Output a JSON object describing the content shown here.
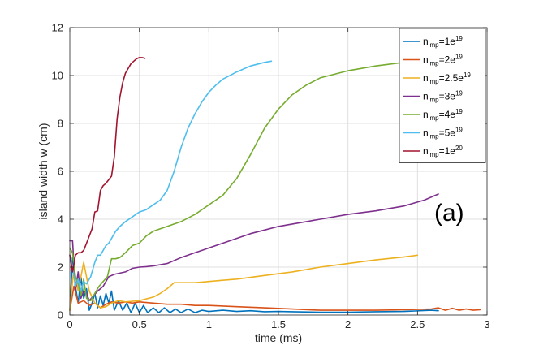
{
  "chart_data": {
    "type": "line",
    "xlabel": "time (ms)",
    "ylabel": "island width w (cm)",
    "xlim": [
      0,
      3
    ],
    "ylim": [
      0,
      12
    ],
    "xticks": [
      "0",
      "0.5",
      "1",
      "1.5",
      "2",
      "2.5",
      "3"
    ],
    "yticks": [
      "0",
      "2",
      "4",
      "6",
      "8",
      "10",
      "12"
    ],
    "grid": true,
    "legend_position": "top-right",
    "annotation": "(a)",
    "series": [
      {
        "name": "n_imp=1e19",
        "legend": {
          "base": "n",
          "sub": "imp",
          "mid": "=1e",
          "sup": "19"
        },
        "color": "#0072BD",
        "x": [
          0.0,
          0.02,
          0.04,
          0.06,
          0.08,
          0.1,
          0.12,
          0.14,
          0.16,
          0.18,
          0.2,
          0.22,
          0.24,
          0.26,
          0.28,
          0.3,
          0.32,
          0.35,
          0.38,
          0.41,
          0.44,
          0.47,
          0.5,
          0.53,
          0.56,
          0.6,
          0.64,
          0.68,
          0.72,
          0.76,
          0.8,
          0.85,
          0.9,
          0.95,
          1.0,
          1.1,
          1.2,
          1.3,
          1.4,
          1.5,
          1.6,
          1.8,
          2.0,
          2.2,
          2.4,
          2.6,
          2.65
        ],
        "y": [
          0.2,
          2.4,
          1.2,
          0.5,
          1.6,
          0.7,
          1.1,
          0.2,
          0.5,
          0.9,
          0.3,
          0.8,
          0.4,
          0.9,
          0.5,
          1.0,
          0.2,
          0.6,
          0.2,
          0.5,
          0.1,
          0.5,
          0.1,
          0.4,
          0.1,
          0.3,
          0.1,
          0.3,
          0.1,
          0.25,
          0.1,
          0.25,
          0.1,
          0.2,
          0.15,
          0.2,
          0.15,
          0.18,
          0.14,
          0.15,
          0.14,
          0.12,
          0.12,
          0.14,
          0.15,
          0.2,
          0.18
        ]
      },
      {
        "name": "n_imp=2e19",
        "legend": {
          "base": "n",
          "sub": "imp",
          "mid": "=2e",
          "sup": "19"
        },
        "color": "#D95319",
        "x": [
          0.0,
          0.03,
          0.06,
          0.1,
          0.14,
          0.18,
          0.22,
          0.26,
          0.3,
          0.35,
          0.4,
          0.45,
          0.5,
          0.6,
          0.7,
          0.8,
          0.9,
          1.0,
          1.2,
          1.4,
          1.6,
          1.8,
          2.0,
          2.2,
          2.4,
          2.6,
          2.65,
          2.7,
          2.75,
          2.8,
          2.85,
          2.9,
          2.95
        ],
        "y": [
          0.2,
          1.2,
          0.5,
          0.6,
          0.4,
          0.5,
          0.3,
          0.45,
          0.55,
          0.5,
          0.55,
          0.5,
          0.55,
          0.5,
          0.45,
          0.45,
          0.4,
          0.4,
          0.35,
          0.3,
          0.25,
          0.2,
          0.2,
          0.2,
          0.22,
          0.25,
          0.3,
          0.2,
          0.28,
          0.2,
          0.25,
          0.2,
          0.22
        ]
      },
      {
        "name": "n_imp=2.5e19",
        "legend": {
          "base": "n",
          "sub": "imp",
          "mid": "=2.5e",
          "sup": "19"
        },
        "color": "#EDB120",
        "x": [
          0.0,
          0.03,
          0.06,
          0.1,
          0.14,
          0.18,
          0.22,
          0.26,
          0.3,
          0.35,
          0.4,
          0.5,
          0.6,
          0.65,
          0.7,
          0.75,
          0.8,
          0.9,
          1.0,
          1.1,
          1.2,
          1.4,
          1.6,
          1.8,
          2.0,
          2.2,
          2.4,
          2.5
        ],
        "y": [
          0.2,
          2.0,
          1.0,
          2.2,
          1.0,
          0.5,
          0.3,
          0.35,
          0.5,
          0.6,
          0.55,
          0.6,
          0.75,
          0.9,
          1.1,
          1.35,
          1.35,
          1.35,
          1.4,
          1.45,
          1.5,
          1.65,
          1.8,
          2.0,
          2.15,
          2.3,
          2.42,
          2.5
        ]
      },
      {
        "name": "n_imp=3e19",
        "legend": {
          "base": "n",
          "sub": "imp",
          "mid": "=3e",
          "sup": "19"
        },
        "color": "#7E2F8E",
        "x": [
          0.0,
          0.02,
          0.04,
          0.06,
          0.08,
          0.1,
          0.12,
          0.14,
          0.17,
          0.2,
          0.24,
          0.28,
          0.32,
          0.36,
          0.4,
          0.45,
          0.5,
          0.55,
          0.6,
          0.7,
          0.8,
          0.85,
          0.9,
          0.95,
          1.0,
          1.1,
          1.2,
          1.3,
          1.4,
          1.5,
          1.6,
          1.8,
          2.0,
          2.2,
          2.4,
          2.55,
          2.65
        ],
        "y": [
          3.1,
          3.1,
          1.0,
          1.8,
          0.7,
          1.0,
          0.9,
          0.6,
          0.8,
          1.0,
          1.2,
          1.6,
          1.7,
          1.75,
          1.8,
          1.95,
          2.0,
          2.02,
          2.05,
          2.15,
          2.4,
          2.5,
          2.6,
          2.7,
          2.8,
          3.0,
          3.2,
          3.4,
          3.55,
          3.7,
          3.8,
          4.0,
          4.2,
          4.35,
          4.55,
          4.8,
          5.05
        ]
      },
      {
        "name": "n_imp=4e19",
        "legend": {
          "base": "n",
          "sub": "imp",
          "mid": "=4e",
          "sup": "19"
        },
        "color": "#77AC30",
        "x": [
          0.0,
          0.02,
          0.04,
          0.06,
          0.08,
          0.1,
          0.12,
          0.15,
          0.18,
          0.21,
          0.24,
          0.27,
          0.3,
          0.33,
          0.36,
          0.4,
          0.45,
          0.5,
          0.55,
          0.6,
          0.7,
          0.8,
          0.9,
          1.0,
          1.1,
          1.2,
          1.3,
          1.4,
          1.5,
          1.6,
          1.7,
          1.8,
          2.0,
          2.2,
          2.4,
          2.6,
          2.75
        ],
        "y": [
          2.8,
          2.6,
          1.6,
          1.3,
          0.8,
          1.5,
          0.7,
          0.6,
          0.9,
          1.2,
          1.4,
          1.6,
          2.35,
          2.35,
          2.4,
          2.6,
          2.9,
          3.0,
          3.3,
          3.5,
          3.7,
          3.9,
          4.2,
          4.6,
          5.0,
          5.7,
          6.7,
          7.8,
          8.6,
          9.2,
          9.6,
          9.9,
          10.2,
          10.4,
          10.55,
          10.65,
          10.7
        ]
      },
      {
        "name": "n_imp=5e19",
        "legend": {
          "base": "n",
          "sub": "imp",
          "mid": "=5e",
          "sup": "19"
        },
        "color": "#4DBEEE",
        "x": [
          0.0,
          0.02,
          0.04,
          0.06,
          0.08,
          0.1,
          0.12,
          0.15,
          0.18,
          0.2,
          0.22,
          0.24,
          0.26,
          0.28,
          0.3,
          0.33,
          0.36,
          0.4,
          0.45,
          0.5,
          0.55,
          0.6,
          0.65,
          0.7,
          0.75,
          0.8,
          0.85,
          0.9,
          0.95,
          1.0,
          1.05,
          1.1,
          1.2,
          1.3,
          1.4,
          1.45
        ],
        "y": [
          2.5,
          2.0,
          1.2,
          1.5,
          1.0,
          1.4,
          1.3,
          1.6,
          2.2,
          2.5,
          2.5,
          2.7,
          2.9,
          3.0,
          3.2,
          3.5,
          3.7,
          3.9,
          4.1,
          4.3,
          4.4,
          4.6,
          4.8,
          5.2,
          6.0,
          7.0,
          7.8,
          8.4,
          8.9,
          9.3,
          9.6,
          9.85,
          10.15,
          10.4,
          10.55,
          10.6
        ]
      },
      {
        "name": "n_imp=1e20",
        "legend": {
          "base": "n",
          "sub": "imp",
          "mid": "=1e",
          "sup": "20"
        },
        "color": "#A2142F",
        "x": [
          0.0,
          0.02,
          0.04,
          0.06,
          0.08,
          0.1,
          0.12,
          0.14,
          0.16,
          0.18,
          0.2,
          0.22,
          0.24,
          0.26,
          0.28,
          0.3,
          0.32,
          0.34,
          0.36,
          0.38,
          0.4,
          0.42,
          0.44,
          0.46,
          0.48,
          0.5,
          0.52,
          0.54
        ],
        "y": [
          2.5,
          1.8,
          2.5,
          2.6,
          2.6,
          2.7,
          3.0,
          3.3,
          3.6,
          4.3,
          4.35,
          5.2,
          5.4,
          5.5,
          5.65,
          5.8,
          6.6,
          8.2,
          9.1,
          9.7,
          10.1,
          10.3,
          10.5,
          10.6,
          10.7,
          10.75,
          10.75,
          10.72
        ]
      }
    ]
  }
}
